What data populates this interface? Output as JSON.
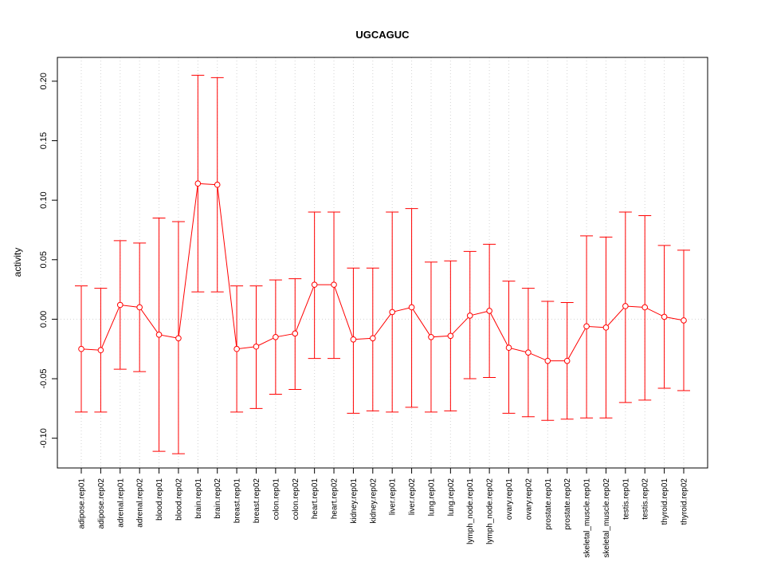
{
  "chart_data": {
    "type": "line",
    "title": "UGCAGUC",
    "xlabel": "",
    "ylabel": "activity",
    "ylim": [
      -0.125,
      0.22
    ],
    "yticks": [
      -0.1,
      -0.05,
      0.0,
      0.05,
      0.1,
      0.15,
      0.2
    ],
    "ytick_labels": [
      "-0.10",
      "-0.05",
      "0.00",
      "0.05",
      "0.10",
      "0.15",
      "0.20"
    ],
    "grid": true,
    "color": "#ff0000",
    "categories": [
      "adipose.rep01",
      "adipose.rep02",
      "adrenal.rep01",
      "adrenal.rep02",
      "blood.rep01",
      "blood.rep02",
      "brain.rep01",
      "brain.rep02",
      "breast.rep01",
      "breast.rep02",
      "colon.rep01",
      "colon.rep02",
      "heart.rep01",
      "heart.rep02",
      "kidney.rep01",
      "kidney.rep02",
      "liver.rep01",
      "liver.rep02",
      "lung.rep01",
      "lung.rep02",
      "lymph_node.rep01",
      "lymph_node.rep02",
      "ovary.rep01",
      "ovary.rep02",
      "prostate.rep01",
      "prostate.rep02",
      "skeletal_muscle.rep01",
      "skeletal_muscle.rep02",
      "testis.rep01",
      "testis.rep02",
      "thyroid.rep01",
      "thyroid.rep02"
    ],
    "values": [
      -0.025,
      -0.026,
      0.012,
      0.01,
      -0.013,
      -0.016,
      0.114,
      0.113,
      -0.025,
      -0.023,
      -0.015,
      -0.012,
      0.029,
      0.029,
      -0.017,
      -0.016,
      0.006,
      0.01,
      -0.015,
      -0.014,
      0.003,
      0.007,
      -0.024,
      -0.028,
      -0.035,
      -0.035,
      -0.006,
      -0.007,
      0.011,
      0.01,
      0.002,
      -0.001
    ],
    "upper": [
      0.028,
      0.026,
      0.066,
      0.064,
      0.085,
      0.082,
      0.205,
      0.203,
      0.028,
      0.028,
      0.033,
      0.034,
      0.09,
      0.09,
      0.043,
      0.043,
      0.09,
      0.093,
      0.048,
      0.049,
      0.057,
      0.063,
      0.032,
      0.026,
      0.015,
      0.014,
      0.07,
      0.069,
      0.09,
      0.087,
      0.062,
      0.058
    ],
    "lower": [
      -0.078,
      -0.078,
      -0.042,
      -0.044,
      -0.111,
      -0.113,
      0.023,
      0.023,
      -0.078,
      -0.075,
      -0.063,
      -0.059,
      -0.033,
      -0.033,
      -0.079,
      -0.077,
      -0.078,
      -0.074,
      -0.078,
      -0.077,
      -0.05,
      -0.049,
      -0.079,
      -0.082,
      -0.085,
      -0.084,
      -0.083,
      -0.083,
      -0.07,
      -0.068,
      -0.058,
      -0.06
    ]
  }
}
